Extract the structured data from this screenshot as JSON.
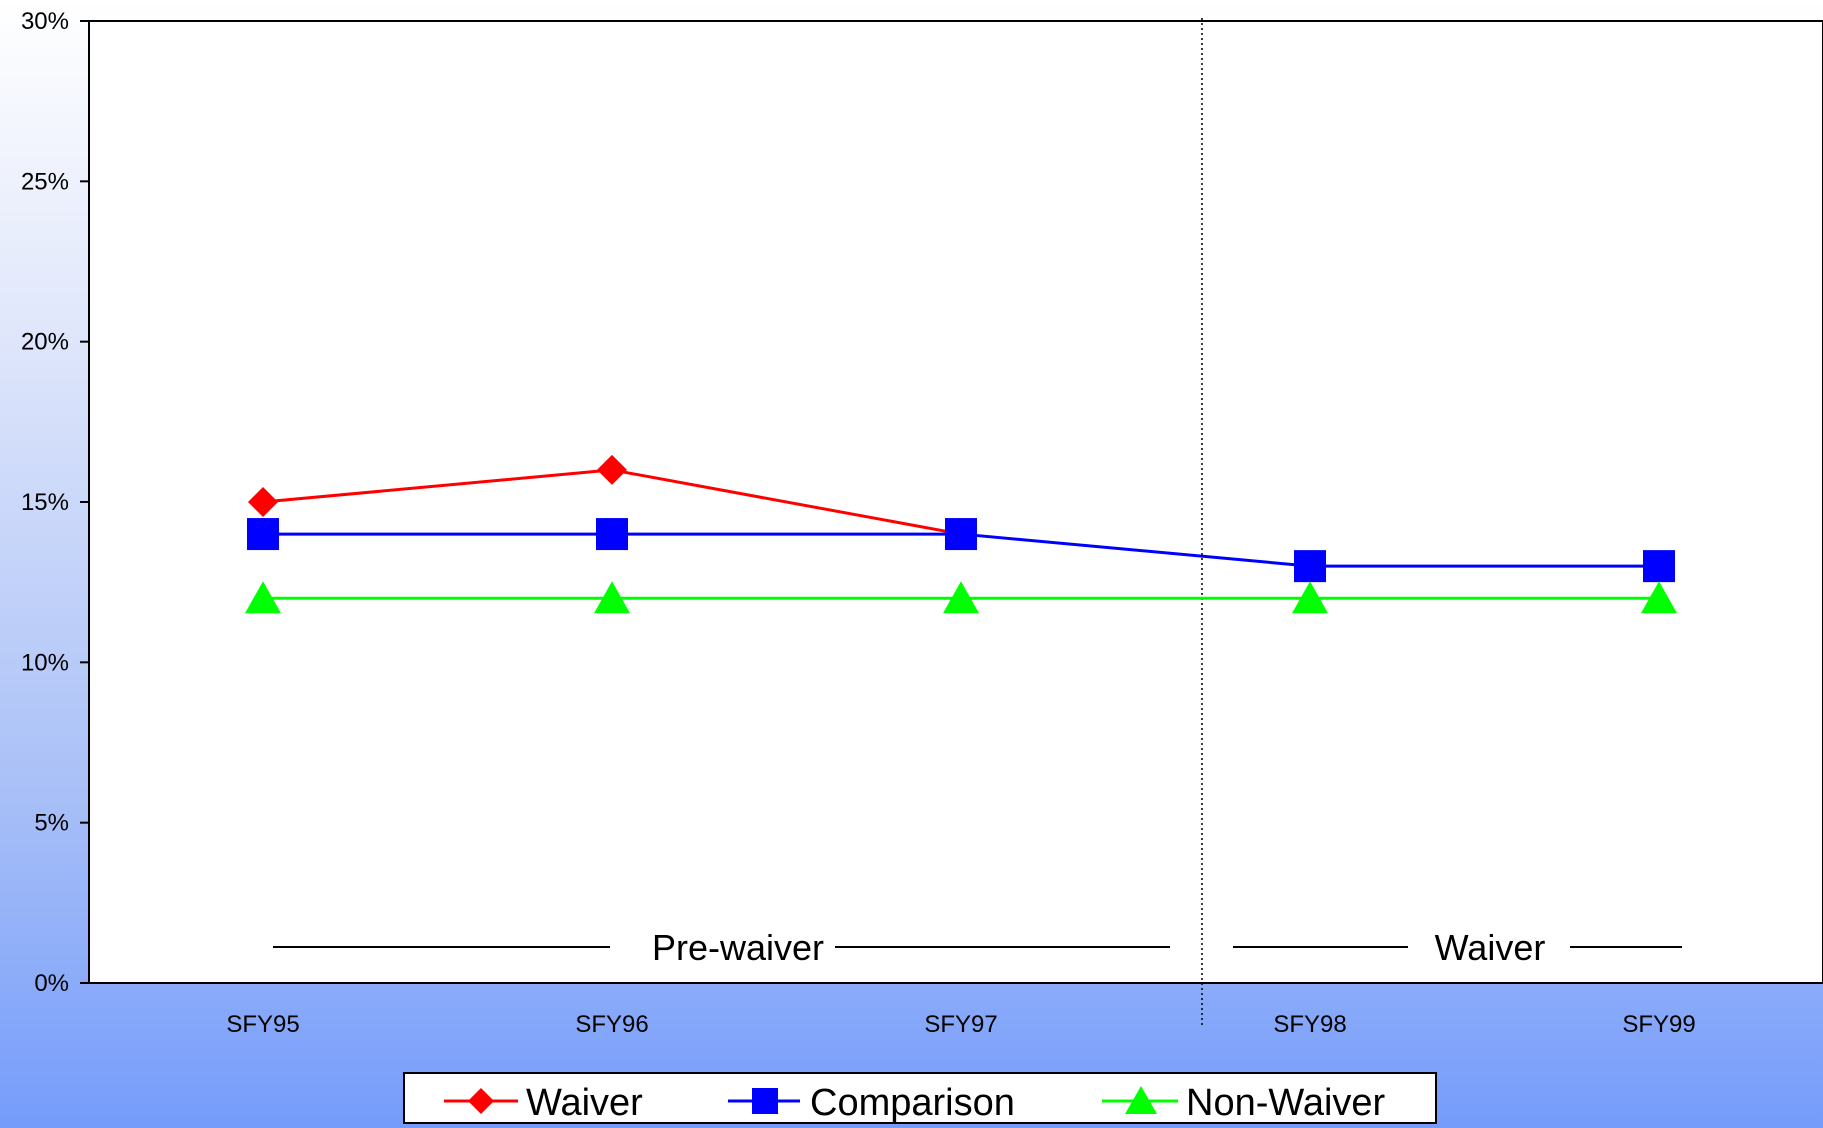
{
  "chart_data": {
    "type": "line",
    "categories": [
      "SFY95",
      "SFY96",
      "SFY97",
      "SFY98",
      "SFY99"
    ],
    "ylim": [
      0,
      30
    ],
    "yticks": [
      "0%",
      "5%",
      "10%",
      "15%",
      "20%",
      "25%",
      "30%"
    ],
    "series": [
      {
        "name": "Waiver",
        "values": [
          15,
          16,
          14,
          null,
          null
        ],
        "color": "#ff0000",
        "marker": "diamond"
      },
      {
        "name": "Comparison",
        "values": [
          14,
          14,
          14,
          13,
          13
        ],
        "color": "#0000ff",
        "marker": "square"
      },
      {
        "name": "Non-Waiver",
        "values": [
          12,
          12,
          12,
          12,
          12
        ],
        "color": "#00ff00",
        "marker": "triangle"
      }
    ],
    "annotations": {
      "pre_waiver": "Pre-waiver",
      "waiver": "Waiver"
    },
    "grid": false,
    "legend": "bottom"
  }
}
